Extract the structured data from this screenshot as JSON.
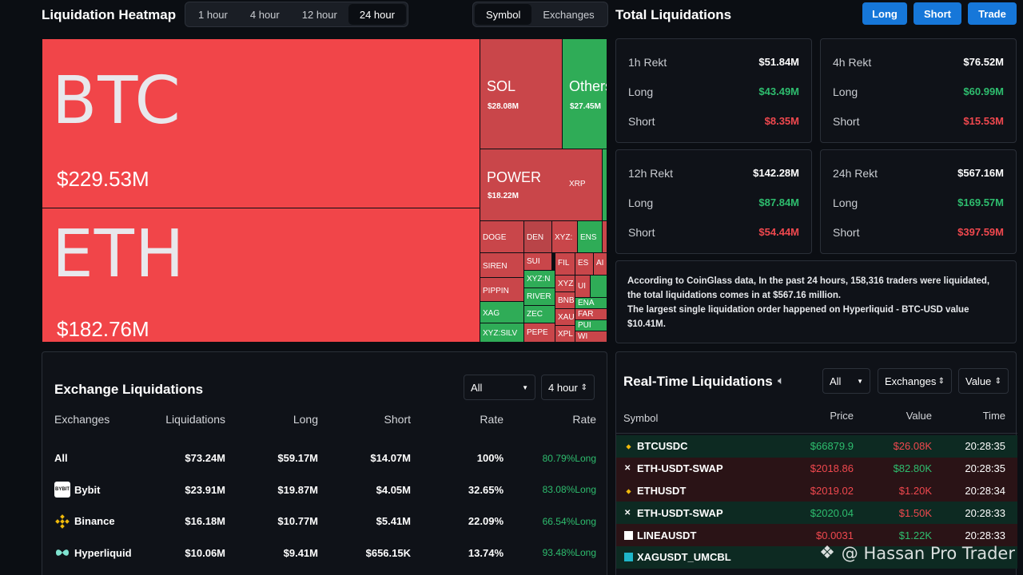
{
  "header": {
    "title": "Liquidation Heatmap",
    "time_tabs": [
      "1 hour",
      "4 hour",
      "12 hour",
      "24 hour"
    ],
    "view_tabs": [
      "Symbol",
      "Exchanges"
    ],
    "right_title": "Total Liquidations",
    "buttons": {
      "long": "Long",
      "short": "Short",
      "trade": "Trade"
    }
  },
  "heatmap": {
    "btc": {
      "symbol": "BTC",
      "value": "$229.53M"
    },
    "eth": {
      "symbol": "ETH",
      "value": "$182.76M"
    },
    "sol": {
      "symbol": "SOL",
      "value": "$28.08M"
    },
    "others": {
      "symbol": "Others",
      "value": "$27.45M"
    },
    "power": {
      "symbol": "POWER",
      "value": "$18.22M"
    },
    "xrp": "XRP",
    "small": {
      "doge": "DOGE",
      "den": "DEN",
      "xyz1": "XYZ:",
      "ens": "ENS",
      "siren": "SIREN",
      "sui": "SUI",
      "fil": "FIL",
      "es": "ES",
      "al": "AI",
      "pippin": "PIPPIN",
      "xyzn": "XYZ:N",
      "xyz2": "XYZ",
      "ui": "UI",
      "river": "RIVER",
      "bnb": "BNB",
      "ena": "ENA",
      "xag": "XAG",
      "zec": "ZEC",
      "xau": "XAU",
      "far": "FAR",
      "pum": "PUI",
      "xyzsilv": "XYZ:SILV",
      "pepe": "PEPE",
      "xpl": "XPL",
      "wi": "WI"
    }
  },
  "stats": [
    {
      "title": "1h Rekt",
      "total": "$51.84M",
      "long_label": "Long",
      "long": "$43.49M",
      "short_label": "Short",
      "short": "$8.35M"
    },
    {
      "title": "4h Rekt",
      "total": "$76.52M",
      "long_label": "Long",
      "long": "$60.99M",
      "short_label": "Short",
      "short": "$15.53M"
    },
    {
      "title": "12h Rekt",
      "total": "$142.28M",
      "long_label": "Long",
      "long": "$87.84M",
      "short_label": "Short",
      "short": "$54.44M"
    },
    {
      "title": "24h Rekt",
      "total": "$567.16M",
      "long_label": "Long",
      "long": "$169.57M",
      "short_label": "Short",
      "short": "$397.59M"
    }
  ],
  "info": {
    "line1": "According to CoinGlass data, In the past 24 hours, 158,316 traders were liquidated, the total liquidations comes in at $567.16 million.",
    "line2": "The largest single liquidation order happened on Hyperliquid - BTC-USD value $10.41M."
  },
  "exchange": {
    "title": "Exchange Liquidations",
    "filter": "All",
    "period": "4 hour",
    "headers": [
      "Exchanges",
      "Liquidations",
      "Long",
      "Short",
      "Rate",
      "Rate"
    ],
    "rows": [
      {
        "name": "All",
        "liq": "$73.24M",
        "long": "$59.17M",
        "short": "$14.07M",
        "rate": "100%",
        "rate2": "80.79%Long"
      },
      {
        "name": "Bybit",
        "liq": "$23.91M",
        "long": "$19.87M",
        "short": "$4.05M",
        "rate": "32.65%",
        "rate2": "83.08%Long"
      },
      {
        "name": "Binance",
        "liq": "$16.18M",
        "long": "$10.77M",
        "short": "$5.41M",
        "rate": "22.09%",
        "rate2": "66.54%Long"
      },
      {
        "name": "Hyperliquid",
        "liq": "$10.06M",
        "long": "$9.41M",
        "short": "$656.15K",
        "rate": "13.74%",
        "rate2": "93.48%Long"
      }
    ],
    "logos": {
      "bybit": "BYBIT"
    }
  },
  "realtime": {
    "title": "Real-Time Liquidations",
    "filter": "All",
    "exchanges": "Exchanges",
    "value": "Value",
    "headers": [
      "Symbol",
      "Price",
      "Value",
      "Time"
    ],
    "rows": [
      {
        "symbol": "BTCUSDC",
        "price": "$66879.9",
        "value": "$26.08K",
        "time": "20:28:35",
        "side": "g"
      },
      {
        "symbol": "ETH-USDT-SWAP",
        "price": "$2018.86",
        "value": "$82.80K",
        "time": "20:28:35",
        "side": "r"
      },
      {
        "symbol": "ETHUSDT",
        "price": "$2019.02",
        "value": "$1.20K",
        "time": "20:28:34",
        "side": "r"
      },
      {
        "symbol": "ETH-USDT-SWAP",
        "price": "$2020.04",
        "value": "$1.50K",
        "time": "20:28:33",
        "side": "g"
      },
      {
        "symbol": "LINEAUSDT",
        "price": "$0.0031",
        "value": "$1.22K",
        "time": "20:28:33",
        "side": "r"
      },
      {
        "symbol": "XAGUSDT_UMCBL",
        "price": "",
        "value": "",
        "time": "",
        "side": "g"
      }
    ]
  },
  "watermark": "@ Hassan Pro Trader"
}
